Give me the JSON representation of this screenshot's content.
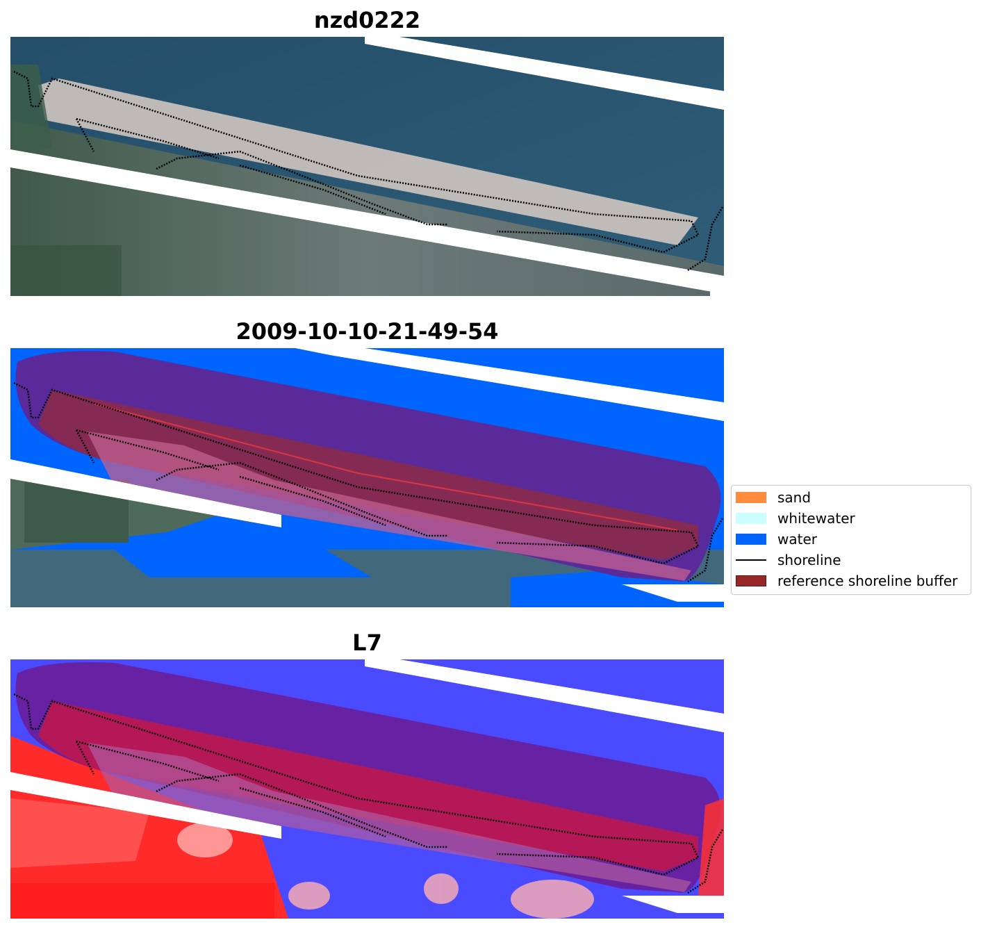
{
  "panels": [
    {
      "title": "nzd0222"
    },
    {
      "title": "2009-10-10-21-49-54"
    },
    {
      "title": "L7"
    }
  ],
  "legend": {
    "items": [
      {
        "label": "sand",
        "color": "#ff8c3c",
        "kind": "patch"
      },
      {
        "label": "whitewater",
        "color": "#ccffff",
        "kind": "patch"
      },
      {
        "label": "water",
        "color": "#0064ff",
        "kind": "patch"
      },
      {
        "label": "shoreline",
        "color": "#000000",
        "kind": "line"
      },
      {
        "label": "reference shoreline buffer",
        "color": "#962828",
        "kind": "patch"
      }
    ]
  },
  "colors": {
    "rgb_water": "#2d5a76",
    "rgb_land": "#4d6a5a",
    "rgb_sand": "#d8cbc2",
    "class_water": "#0064ff",
    "buffer_purple": "#5a2a9a",
    "buffer_core": "#8a2a4a",
    "mndwi_water": "#4a4aff",
    "mndwi_land": "#ff1e1e"
  }
}
